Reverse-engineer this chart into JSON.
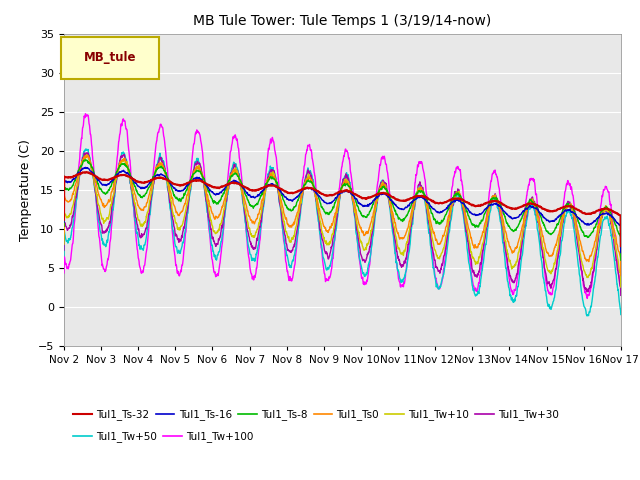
{
  "title": "MB Tule Tower: Tule Temps 1 (3/19/14-now)",
  "ylabel": "Temperature (C)",
  "xlim": [
    0,
    15
  ],
  "ylim": [
    -5,
    35
  ],
  "yticks": [
    -5,
    0,
    5,
    10,
    15,
    20,
    25,
    30,
    35
  ],
  "xtick_labels": [
    "Nov 2",
    "Nov 3",
    "Nov 4",
    "Nov 5",
    "Nov 6",
    "Nov 7",
    "Nov 8",
    "Nov 9",
    "Nov 10",
    "Nov 11",
    "Nov 12",
    "Nov 13",
    "Nov 14",
    "Nov 15",
    "Nov 16",
    "Nov 17"
  ],
  "bg_color": "#e8e8e8",
  "series": {
    "Tul1_Ts-32": {
      "color": "#cc0000",
      "lw": 1.5
    },
    "Tul1_Ts-16": {
      "color": "#0000cc",
      "lw": 1.0
    },
    "Tul1_Ts-8": {
      "color": "#00bb00",
      "lw": 1.0
    },
    "Tul1_Ts0": {
      "color": "#ff8800",
      "lw": 1.0
    },
    "Tul1_Tw+10": {
      "color": "#cccc00",
      "lw": 1.0
    },
    "Tul1_Tw+30": {
      "color": "#aa00aa",
      "lw": 1.0
    },
    "Tul1_Tw+50": {
      "color": "#00cccc",
      "lw": 1.0
    },
    "Tul1_Tw+100": {
      "color": "#ff00ff",
      "lw": 1.0
    }
  },
  "legend_label": "MB_tule",
  "legend_facecolor": "#ffffcc",
  "legend_edgecolor": "#bbaa00",
  "legend_text_color": "#880000"
}
